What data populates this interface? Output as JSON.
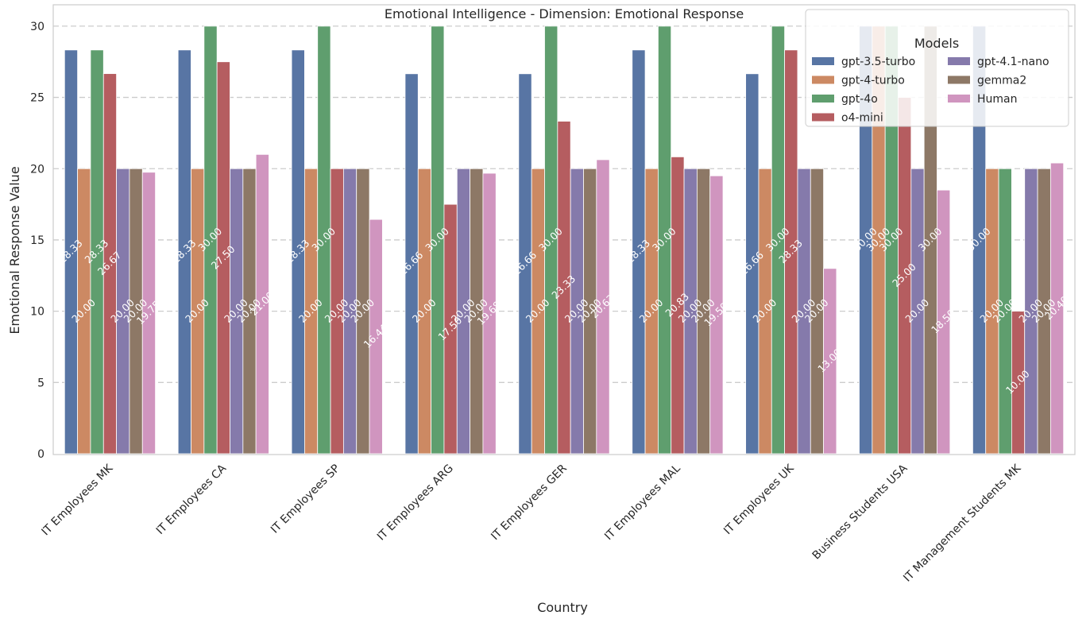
{
  "chart_data": {
    "type": "bar",
    "title": "Emotional Intelligence - Dimension: Emotional Response",
    "xlabel": "Country",
    "ylabel": "Emotional Response Value",
    "ylim": [
      0,
      31.5
    ],
    "yticks": [
      0,
      5,
      10,
      15,
      20,
      25,
      30
    ],
    "grid": true,
    "legend_title": "Models",
    "legend_position": "top-right",
    "categories": [
      "IT Employees MK",
      "IT Employees CA",
      "IT Employees SP",
      "IT Employees ARG",
      "IT Employees GER",
      "IT Employees MAL",
      "IT Employees UK",
      "Business Students USA",
      "IT Management Students MK"
    ],
    "series": [
      {
        "name": "gpt-3.5-turbo",
        "color": "#5875a4",
        "values": [
          28.33,
          28.33,
          28.33,
          26.66,
          26.66,
          28.33,
          26.66,
          30.0,
          30.0
        ]
      },
      {
        "name": "gpt-4-turbo",
        "color": "#cc8963",
        "values": [
          20.0,
          20.0,
          20.0,
          20.0,
          20.0,
          20.0,
          20.0,
          30.0,
          20.0
        ]
      },
      {
        "name": "gpt-4o",
        "color": "#5f9e6e",
        "values": [
          28.33,
          30.0,
          30.0,
          30.0,
          30.0,
          30.0,
          30.0,
          30.0,
          20.0
        ]
      },
      {
        "name": "o4-mini",
        "color": "#b55d60",
        "values": [
          26.67,
          27.5,
          20.0,
          17.5,
          23.33,
          20.83,
          28.33,
          25.0,
          10.0
        ]
      },
      {
        "name": "gpt-4.1-nano",
        "color": "#857aab",
        "values": [
          20.0,
          20.0,
          20.0,
          20.0,
          20.0,
          20.0,
          20.0,
          20.0,
          20.0
        ]
      },
      {
        "name": "gemma2",
        "color": "#8d7866",
        "values": [
          20.0,
          20.0,
          20.0,
          20.0,
          20.0,
          20.0,
          20.0,
          30.0,
          20.0
        ]
      },
      {
        "name": "Human",
        "color": "#d095bf",
        "values": [
          19.75,
          21.0,
          16.44,
          19.68,
          20.63,
          19.5,
          13.0,
          18.5,
          20.4
        ]
      }
    ]
  }
}
